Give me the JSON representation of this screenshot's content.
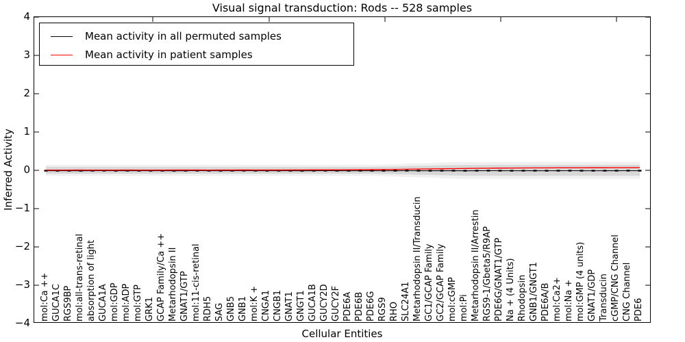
{
  "chart_data": {
    "type": "line",
    "title": "Visual signal transduction: Rods -- 528 samples",
    "xlabel": "Cellular Entities",
    "ylabel": "Inferred Activity",
    "ylim": [
      -4,
      4
    ],
    "ytick_labels": [
      "4",
      "3",
      "2",
      "1",
      "0",
      "−1",
      "−2",
      "−3",
      "−4"
    ],
    "grid": false,
    "legend_position": "upper left",
    "categories": [
      "mol:Ca ++",
      "GUCA1C",
      "RGS9BP",
      "mol:all-trans-retinal",
      "absorption of light",
      "GUCA1A",
      "mol:GDP",
      "mol:ADP",
      "mol:GTP",
      "GRK1",
      "GCAP Family/Ca ++",
      "Metarhodopsin II",
      "GNAT1/GTP",
      "mol:11-cis-retinal",
      "RDH5",
      "SAG",
      "GNB5",
      "GNB1",
      "mol:K +",
      "CNGA1",
      "CNGB1",
      "GNAT1",
      "GNGT1",
      "GUCA1B",
      "GUCY2D",
      "GUCY2F",
      "PDE6A",
      "PDE6B",
      "PDE6G",
      "RGS9",
      "RHO",
      "SLC24A1",
      "Metarhodopsin II/Transducin",
      "GC1/GCAP Family",
      "GC2/GCAP Family",
      "mol:cGMP",
      "mol:Pi",
      "Metarhodopsin II/Arrestin",
      "RGS9-1/Gbeta5/R9AP",
      "PDE6G/GNAT1/GTP",
      "Na + (4 Units)",
      "Rhodopsin",
      "GNB1/GNGT1",
      "PDE6A/B",
      "mol:Ca2+",
      "mol:Na +",
      "mol:GMP (4 units)",
      "GNAT1/GDP",
      "Transducin",
      "cGMP/CNG Channel",
      "CNG Channel",
      "PDE6"
    ],
    "series": [
      {
        "name": "Mean activity in all permuted samples",
        "color": "#000000",
        "marker": "dash",
        "values": [
          -0.01,
          -0.011,
          -0.01,
          -0.012,
          -0.01,
          -0.009,
          -0.011,
          -0.01,
          -0.01,
          -0.011,
          -0.01,
          -0.012,
          -0.01,
          -0.009,
          -0.01,
          -0.011,
          -0.01,
          -0.009,
          -0.01,
          -0.011,
          -0.01,
          -0.01,
          -0.012,
          -0.01,
          -0.009,
          -0.01,
          -0.011,
          -0.01,
          -0.01,
          -0.011,
          -0.01,
          -0.009,
          -0.01,
          -0.011,
          -0.01,
          -0.01,
          -0.012,
          -0.01,
          -0.009,
          -0.01,
          -0.011,
          -0.01,
          -0.01,
          -0.011,
          -0.01,
          -0.009,
          -0.01,
          -0.011,
          -0.01,
          -0.01,
          -0.009,
          -0.01
        ]
      },
      {
        "name": "Mean activity in patient samples",
        "color": "#ff0000",
        "marker": "none",
        "values": [
          0.005,
          0.006,
          0.005,
          0.007,
          0.006,
          0.005,
          0.006,
          0.007,
          0.006,
          0.005,
          0.006,
          0.007,
          0.008,
          0.007,
          0.006,
          0.007,
          0.008,
          0.009,
          0.008,
          0.007,
          0.008,
          0.009,
          0.01,
          0.012,
          0.011,
          0.012,
          0.014,
          0.016,
          0.018,
          0.02,
          0.024,
          0.028,
          0.032,
          0.036,
          0.04,
          0.044,
          0.048,
          0.052,
          0.055,
          0.058,
          0.06,
          0.062,
          0.063,
          0.064,
          0.065,
          0.066,
          0.066,
          0.067,
          0.067,
          0.068,
          0.068,
          0.07
        ]
      }
    ],
    "band": {
      "color": "#d6d6d6",
      "center": 0,
      "halfwidth": [
        0.09,
        0.09,
        0.09,
        0.09,
        0.09,
        0.09,
        0.09,
        0.09,
        0.09,
        0.09,
        0.09,
        0.09,
        0.09,
        0.09,
        0.09,
        0.09,
        0.09,
        0.09,
        0.09,
        0.09,
        0.09,
        0.09,
        0.09,
        0.09,
        0.09,
        0.09,
        0.09,
        0.09,
        0.09,
        0.095,
        0.1,
        0.11,
        0.115,
        0.12,
        0.13,
        0.135,
        0.14,
        0.14,
        0.14,
        0.14,
        0.14,
        0.14,
        0.14,
        0.14,
        0.14,
        0.14,
        0.14,
        0.14,
        0.14,
        0.14,
        0.14,
        0.14
      ]
    }
  }
}
